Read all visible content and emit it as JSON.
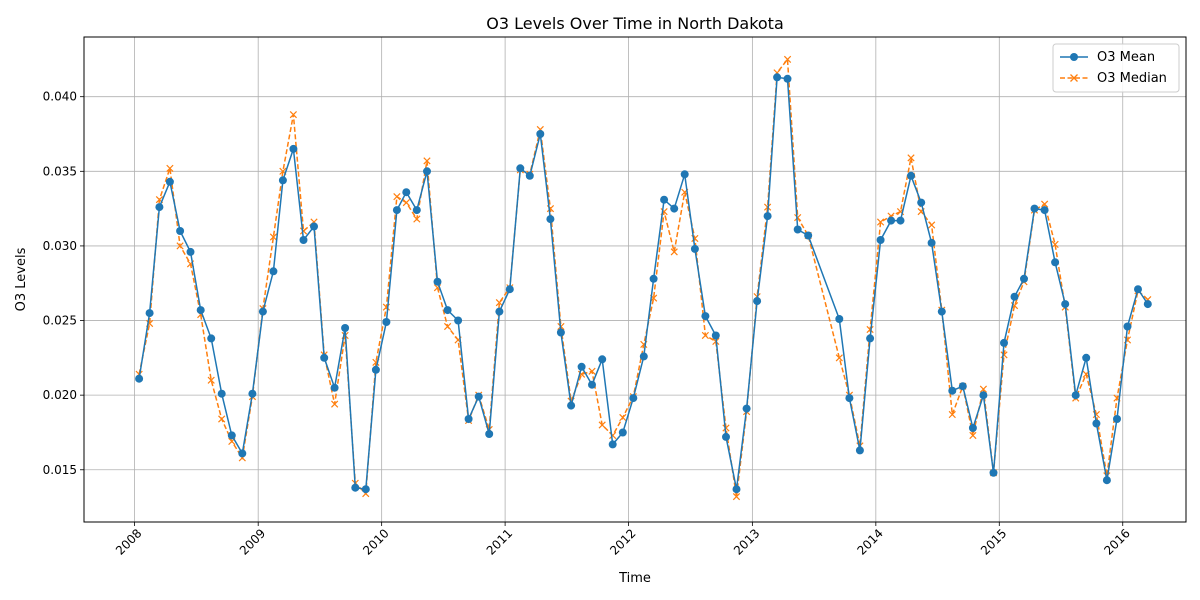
{
  "chart_data": {
    "type": "line",
    "title": "O3 Levels Over Time in North Dakota",
    "xlabel": "Time",
    "ylabel": "O3 Levels",
    "xlim": [
      "2007-08-05",
      "2016-07-06"
    ],
    "ylim": [
      0.0115,
      0.044
    ],
    "x_ticks": [
      "2008-01-01",
      "2009-01-01",
      "2010-01-01",
      "2011-01-01",
      "2012-01-01",
      "2013-01-01",
      "2014-01-01",
      "2015-01-01",
      "2016-01-01"
    ],
    "x_tick_labels": [
      "2008",
      "2009",
      "2010",
      "2011",
      "2012",
      "2013",
      "2014",
      "2015",
      "2016"
    ],
    "y_ticks": [
      0.015,
      0.02,
      0.025,
      0.03,
      0.035,
      0.04
    ],
    "y_tick_labels": [
      "0.015",
      "0.020",
      "0.025",
      "0.030",
      "0.035",
      "0.040"
    ],
    "grid": true,
    "legend_position": "top-right",
    "colors": {
      "mean": "#1f77b4",
      "median": "#ff7f0e",
      "grid": "#b0b0b0"
    },
    "x": [
      "2008-01",
      "2008-02",
      "2008-03",
      "2008-04",
      "2008-05",
      "2008-06",
      "2008-07",
      "2008-08",
      "2008-09",
      "2008-10",
      "2008-11",
      "2008-12",
      "2009-01",
      "2009-02",
      "2009-03",
      "2009-04",
      "2009-05",
      "2009-06",
      "2009-07",
      "2009-08",
      "2009-09",
      "2009-10",
      "2009-11",
      "2009-12",
      "2010-01",
      "2010-02",
      "2010-03",
      "2010-04",
      "2010-05",
      "2010-06",
      "2010-07",
      "2010-08",
      "2010-09",
      "2010-10",
      "2010-11",
      "2010-12",
      "2011-01",
      "2011-02",
      "2011-03",
      "2011-04",
      "2011-05",
      "2011-06",
      "2011-07",
      "2011-08",
      "2011-09",
      "2011-10",
      "2011-11",
      "2011-12",
      "2012-01",
      "2012-02",
      "2012-03",
      "2012-04",
      "2012-05",
      "2012-06",
      "2012-07",
      "2012-08",
      "2012-09",
      "2012-10",
      "2012-11",
      "2012-12",
      "2013-01",
      "2013-02",
      "2013-03",
      "2013-04",
      "2013-05",
      "2013-06",
      "2013-09",
      "2013-10",
      "2013-11",
      "2013-12",
      "2014-01",
      "2014-02",
      "2014-03",
      "2014-04",
      "2014-05",
      "2014-06",
      "2014-07",
      "2014-08",
      "2014-09",
      "2014-10",
      "2014-11",
      "2014-12",
      "2015-01",
      "2015-02",
      "2015-03",
      "2015-04",
      "2015-05",
      "2015-06",
      "2015-07",
      "2015-08",
      "2015-09",
      "2015-10",
      "2015-11",
      "2015-12",
      "2016-01",
      "2016-02",
      "2016-03"
    ],
    "series": [
      {
        "name": "O3 Mean",
        "line_style": "solid",
        "marker": "circle",
        "values": [
          0.0211,
          0.0255,
          0.0326,
          0.0343,
          0.031,
          0.0296,
          0.0257,
          0.0238,
          0.0201,
          0.0173,
          0.0161,
          0.0201,
          0.0256,
          0.0283,
          0.0344,
          0.0365,
          0.0304,
          0.0313,
          0.0225,
          0.0205,
          0.0245,
          0.0138,
          0.0137,
          0.0217,
          0.0249,
          0.0324,
          0.0336,
          0.0324,
          0.035,
          0.0276,
          0.0257,
          0.025,
          0.0184,
          0.0199,
          0.0174,
          0.0256,
          0.0271,
          0.0352,
          0.0347,
          0.0375,
          0.0318,
          0.0242,
          0.0193,
          0.0219,
          0.0207,
          0.0224,
          0.0167,
          0.0175,
          0.0198,
          0.0226,
          0.0278,
          0.0331,
          0.0325,
          0.0348,
          0.0298,
          0.0253,
          0.024,
          0.0172,
          0.0137,
          0.0191,
          0.0263,
          0.032,
          0.0413,
          0.0412,
          0.0311,
          0.0307,
          0.0251,
          0.0198,
          0.0163,
          0.0238,
          0.0304,
          0.0317,
          0.0317,
          0.0347,
          0.0329,
          0.0302,
          0.0256,
          0.0203,
          0.0206,
          0.0178,
          0.02,
          0.0148,
          0.0235,
          0.0266,
          0.0278,
          0.0325,
          0.0324,
          0.0289,
          0.0261,
          0.02,
          0.0225,
          0.0181,
          0.0143,
          0.0184,
          0.0246,
          0.0271,
          0.0261
        ]
      },
      {
        "name": "O3 Median",
        "line_style": "dashed",
        "marker": "x",
        "values": [
          0.0214,
          0.0248,
          0.0331,
          0.0352,
          0.03,
          0.0288,
          0.0254,
          0.021,
          0.0184,
          0.0169,
          0.0158,
          0.0199,
          0.0258,
          0.0306,
          0.035,
          0.0388,
          0.031,
          0.0316,
          0.0227,
          0.0194,
          0.024,
          0.0141,
          0.0134,
          0.0222,
          0.0259,
          0.0333,
          0.0329,
          0.0318,
          0.0357,
          0.0272,
          0.0246,
          0.0237,
          0.0183,
          0.02,
          0.0177,
          0.0262,
          0.0272,
          0.0351,
          0.0348,
          0.0378,
          0.0325,
          0.0246,
          0.0196,
          0.0214,
          0.0216,
          0.018,
          0.0173,
          0.0185,
          0.0199,
          0.0234,
          0.0265,
          0.0323,
          0.0296,
          0.0336,
          0.0305,
          0.024,
          0.0236,
          0.0178,
          0.0132,
          0.0189,
          0.0266,
          0.0326,
          0.0416,
          0.0425,
          0.0319,
          0.0307,
          0.0225,
          0.02,
          0.0166,
          0.0244,
          0.0316,
          0.032,
          0.0323,
          0.0359,
          0.0323,
          0.0314,
          0.0257,
          0.0187,
          0.0206,
          0.0173,
          0.0204,
          0.0148,
          0.0227,
          0.026,
          0.0276,
          0.0324,
          0.0328,
          0.0301,
          0.0259,
          0.0198,
          0.0214,
          0.0187,
          0.0146,
          0.0198,
          0.0237,
          0.027,
          0.0264
        ]
      }
    ]
  }
}
